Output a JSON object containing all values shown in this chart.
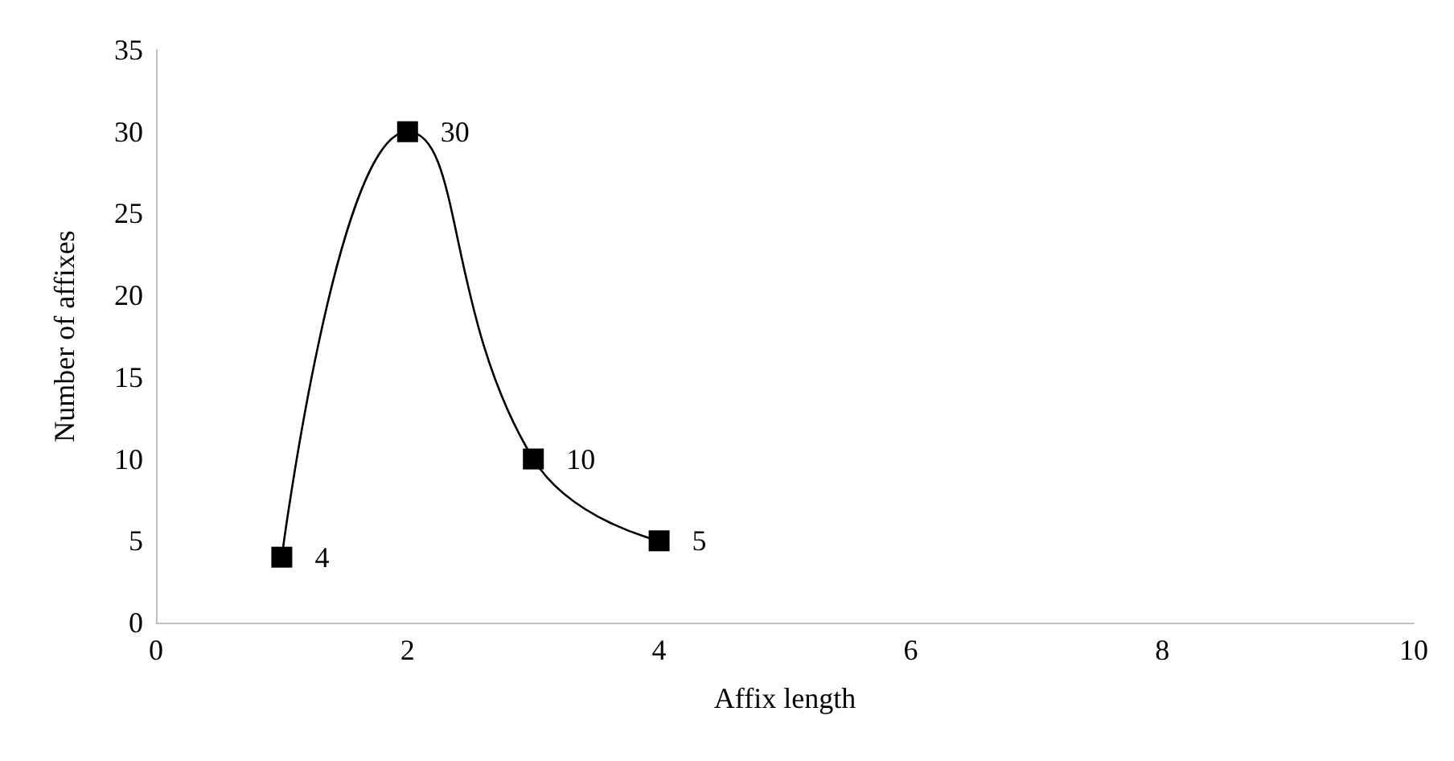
{
  "chart_data": {
    "type": "line",
    "xlabel": "Affix length",
    "ylabel": "Number of affixes",
    "x": [
      1,
      2,
      3,
      4
    ],
    "series": [
      {
        "color": "#000000",
        "values": [
          4,
          30,
          10,
          5
        ]
      }
    ],
    "xlim": [
      0,
      10
    ],
    "xticks": [
      0,
      2,
      4,
      6,
      8,
      10
    ],
    "ylim": [
      0,
      35
    ],
    "yticks": [
      0,
      5,
      10,
      15,
      20,
      25,
      30,
      35
    ],
    "marker": "square",
    "data_labels": true,
    "grid": false
  }
}
